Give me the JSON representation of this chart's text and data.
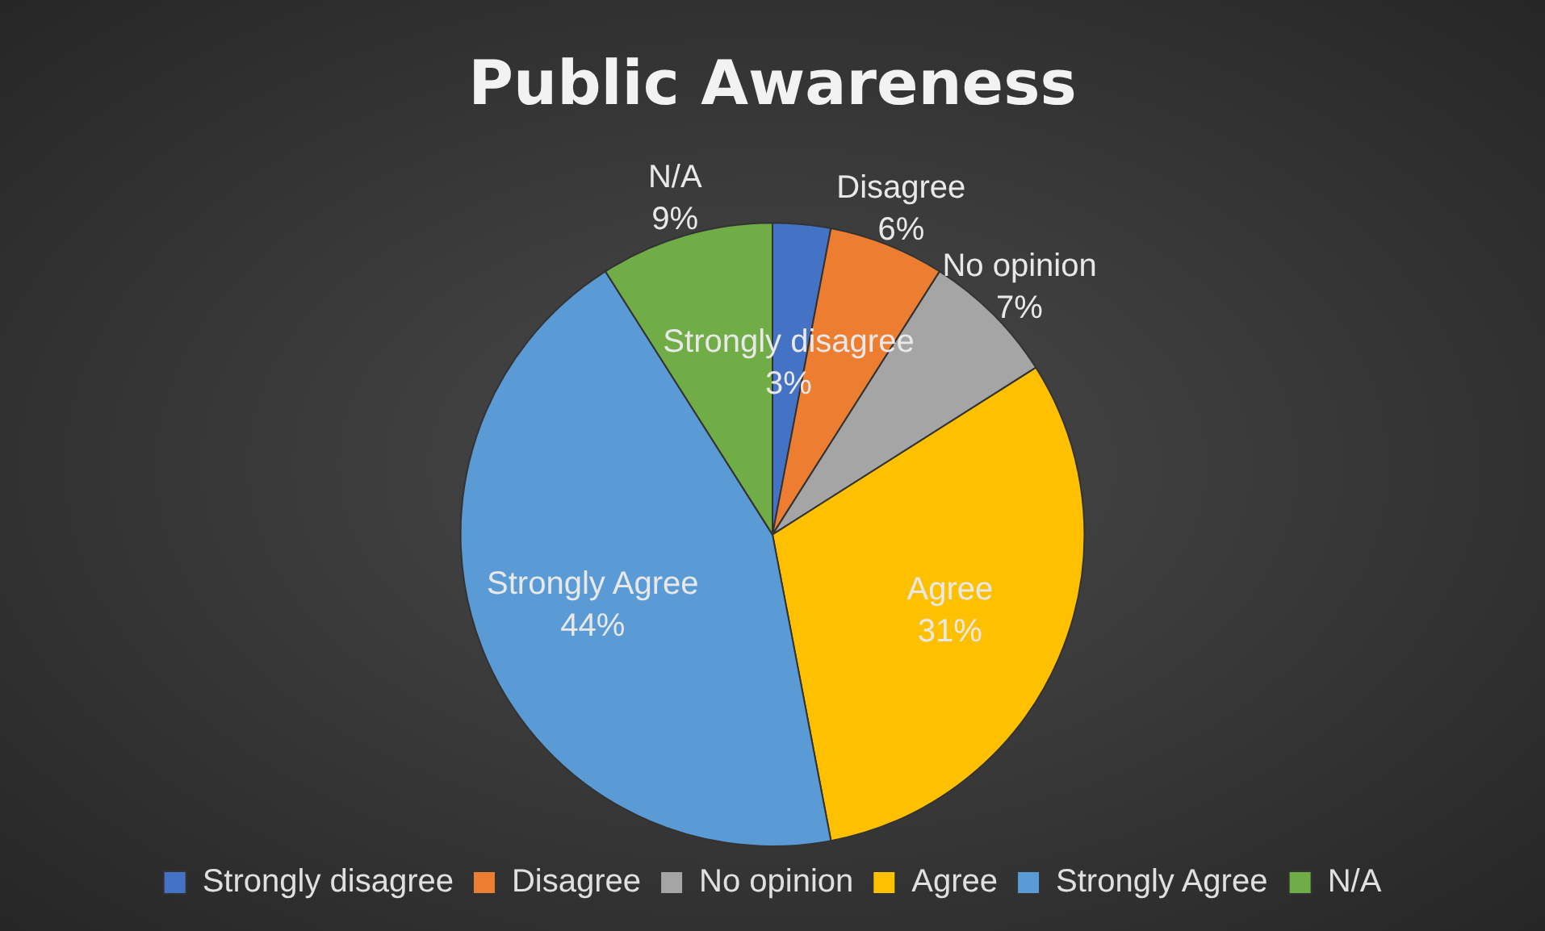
{
  "chart_data": {
    "type": "pie",
    "title": "Public Awareness",
    "categories": [
      "Strongly disagree",
      "Disagree",
      "No opinion",
      "Agree",
      "Strongly Agree",
      "N/A"
    ],
    "values": [
      3,
      6,
      7,
      31,
      44,
      9
    ],
    "value_labels": [
      "3%",
      "6%",
      "7%",
      "31%",
      "44%",
      "9%"
    ],
    "colors": [
      "#4472c4",
      "#ed7d31",
      "#a5a5a5",
      "#ffc000",
      "#5b9bd5",
      "#70ad47"
    ],
    "legend": "bottom"
  }
}
